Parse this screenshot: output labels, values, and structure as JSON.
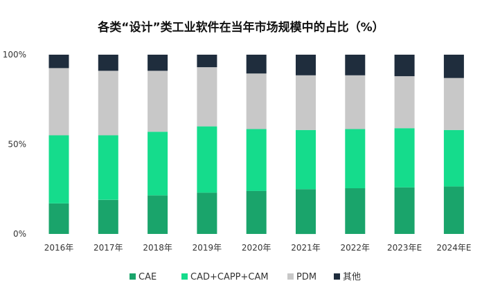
{
  "chart_data": {
    "type": "bar",
    "stacked": true,
    "title": "各类“设计”类工业软件在当年市场规模中的占比（%）",
    "categories": [
      "2016年",
      "2017年",
      "2018年",
      "2019年",
      "2020年",
      "2021年",
      "2022年",
      "2023年E",
      "2024年E"
    ],
    "y_ticks": [
      "0%",
      "50%",
      "100%"
    ],
    "ylim": [
      0,
      100
    ],
    "grid": false,
    "legend_position": "bottom",
    "series": [
      {
        "name": "CAE",
        "color": "#1aa46b",
        "values": [
          17,
          19,
          21.5,
          23,
          24,
          25,
          25.5,
          26,
          26.5
        ]
      },
      {
        "name": "CAD+CAPP+CAM",
        "color": "#15dc8c",
        "values": [
          38,
          36,
          35.5,
          37,
          34.5,
          33,
          33,
          33,
          31.5
        ]
      },
      {
        "name": "PDM",
        "color": "#c8c8c8",
        "values": [
          37.5,
          36,
          34,
          33,
          31,
          30.5,
          30,
          29,
          29
        ]
      },
      {
        "name": "其他",
        "color": "#1f2d3d",
        "values": [
          7.5,
          9,
          9,
          7,
          10.5,
          11.5,
          11.5,
          12,
          13
        ]
      }
    ]
  }
}
